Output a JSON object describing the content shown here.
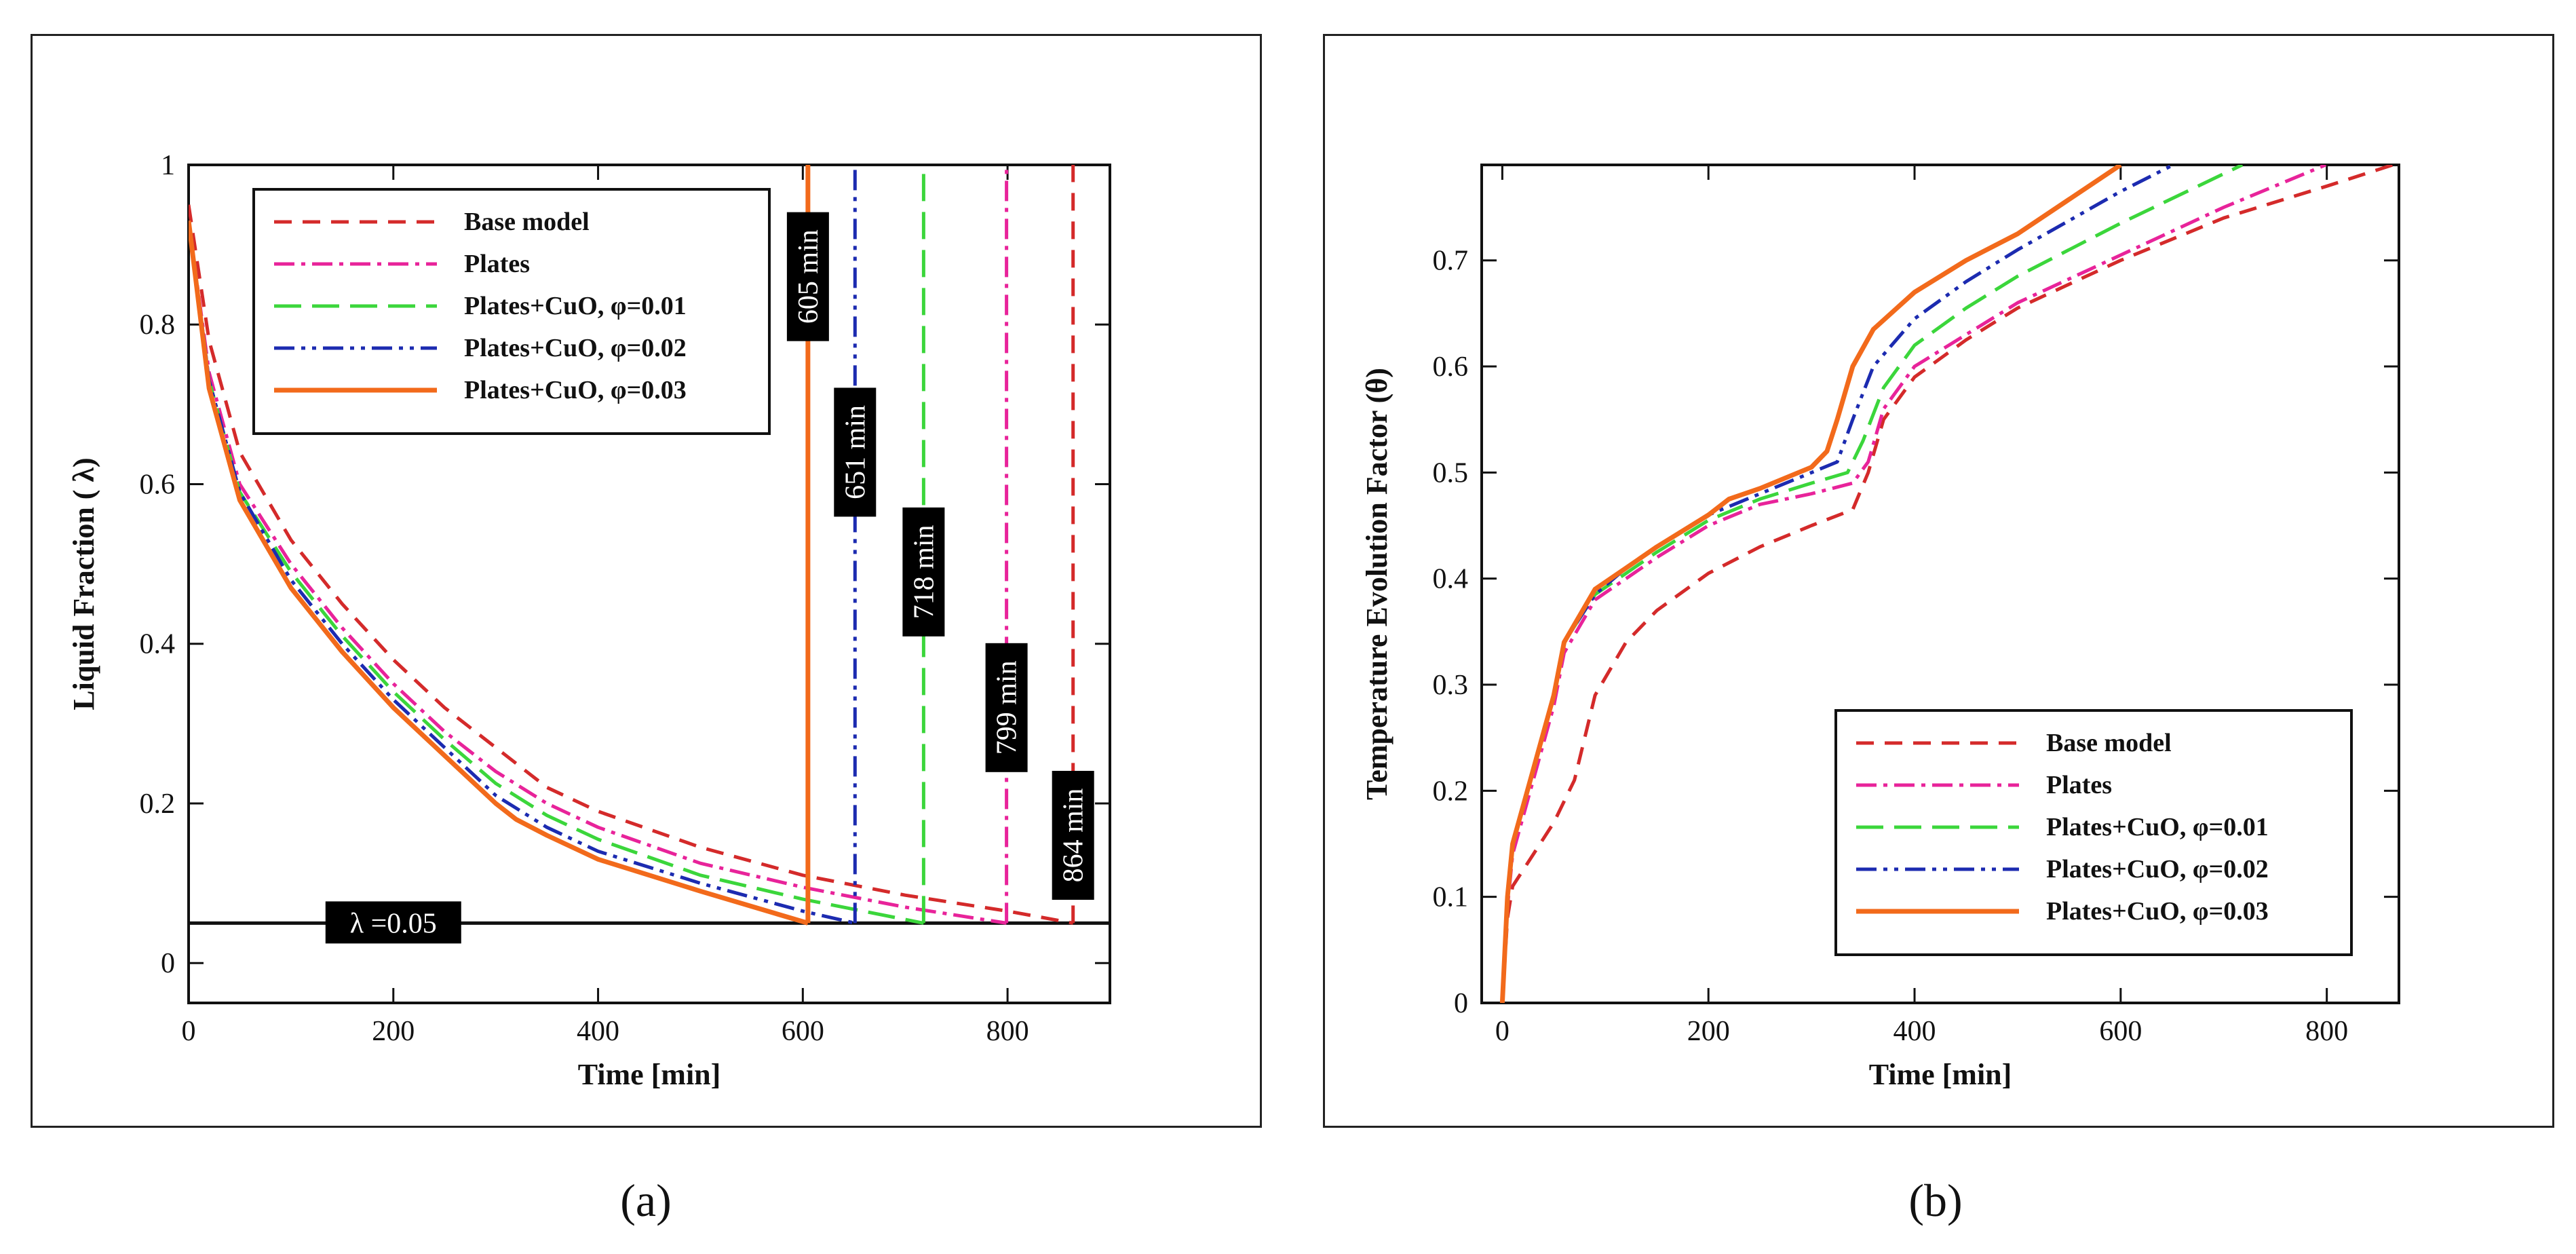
{
  "chart_data": [
    {
      "id": "a",
      "type": "line",
      "caption": "(a)",
      "xlabel": "Time [min]",
      "ylabel": "Liquid Fraction ( λ)",
      "xlim": [
        0,
        900
      ],
      "ylim": [
        -0.05,
        1.0
      ],
      "xticks": [
        0,
        200,
        400,
        600,
        800
      ],
      "yticks": [
        0,
        0.2,
        0.4,
        0.6,
        0.8,
        1
      ],
      "xtick_labels": [
        "0",
        "200",
        "400",
        "600",
        "800"
      ],
      "ytick_labels": [
        "0",
        "0.2",
        "0.4",
        "0.6",
        "0.8",
        "1"
      ],
      "legend_position": "top-left",
      "series": [
        {
          "name": "Base model",
          "color": "#d42a2a",
          "dash": "dash",
          "vertical_at": 864,
          "x": [
            0,
            20,
            50,
            100,
            150,
            200,
            250,
            300,
            350,
            400,
            500,
            600,
            700,
            800,
            864
          ],
          "y": [
            0.95,
            0.78,
            0.64,
            0.53,
            0.45,
            0.38,
            0.32,
            0.27,
            0.22,
            0.19,
            0.145,
            0.11,
            0.085,
            0.065,
            0.05
          ]
        },
        {
          "name": "Plates",
          "color": "#e8239a",
          "dash": "dashdot",
          "vertical_at": 799,
          "x": [
            0,
            20,
            50,
            100,
            150,
            200,
            250,
            300,
            350,
            400,
            500,
            600,
            700,
            799
          ],
          "y": [
            0.93,
            0.74,
            0.6,
            0.5,
            0.42,
            0.35,
            0.29,
            0.24,
            0.2,
            0.17,
            0.125,
            0.095,
            0.07,
            0.05
          ]
        },
        {
          "name": "Plates+CuO, φ=0.01",
          "color": "#3bd63b",
          "dash": "longdash",
          "vertical_at": 718,
          "x": [
            0,
            20,
            50,
            100,
            150,
            200,
            250,
            300,
            350,
            400,
            500,
            600,
            718
          ],
          "y": [
            0.93,
            0.73,
            0.59,
            0.49,
            0.41,
            0.34,
            0.28,
            0.225,
            0.185,
            0.155,
            0.11,
            0.08,
            0.05
          ]
        },
        {
          "name": "Plates+CuO, φ=0.02",
          "color": "#1c2bb0",
          "dash": "dashdotdot",
          "vertical_at": 651,
          "x": [
            0,
            20,
            50,
            100,
            150,
            200,
            250,
            300,
            350,
            400,
            500,
            600,
            651
          ],
          "y": [
            0.93,
            0.73,
            0.59,
            0.48,
            0.4,
            0.33,
            0.27,
            0.21,
            0.17,
            0.14,
            0.1,
            0.065,
            0.05
          ]
        },
        {
          "name": "Plates+CuO, φ=0.03",
          "color": "#f26a1b",
          "dash": "solid",
          "vertical_at": 605,
          "x": [
            0,
            20,
            50,
            100,
            150,
            200,
            250,
            300,
            320,
            350,
            400,
            500,
            605
          ],
          "y": [
            0.93,
            0.72,
            0.58,
            0.47,
            0.39,
            0.32,
            0.26,
            0.2,
            0.18,
            0.16,
            0.13,
            0.09,
            0.05
          ]
        }
      ],
      "threshold": {
        "value": 0.05,
        "label": "λ =0.05",
        "label_x": 200
      },
      "annotations": [
        {
          "text": "605 min",
          "x": 605,
          "y": 0.86,
          "color": "#000000"
        },
        {
          "text": "651 min",
          "x": 651,
          "y": 0.64,
          "color": "#000000"
        },
        {
          "text": "718 min",
          "x": 718,
          "y": 0.49,
          "color": "#000000"
        },
        {
          "text": "799 min",
          "x": 799,
          "y": 0.32,
          "color": "#000000"
        },
        {
          "text": "864 min",
          "x": 864,
          "y": 0.16,
          "color": "#000000"
        }
      ]
    },
    {
      "id": "b",
      "type": "line",
      "caption": "(b)",
      "xlabel": "Time [min]",
      "ylabel": "Temperature Evolution Factor (θ)",
      "xlim": [
        -20,
        870
      ],
      "ylim": [
        0,
        0.79
      ],
      "xticks": [
        0,
        200,
        400,
        600,
        800
      ],
      "yticks": [
        0,
        0.1,
        0.2,
        0.3,
        0.4,
        0.5,
        0.6,
        0.7
      ],
      "xtick_labels": [
        "0",
        "200",
        "400",
        "600",
        "800"
      ],
      "ytick_labels": [
        "0",
        "0.1",
        "0.2",
        "0.3",
        "0.4",
        "0.5",
        "0.6",
        "0.7"
      ],
      "legend_position": "bottom-right",
      "series": [
        {
          "name": "Base model",
          "color": "#d42a2a",
          "dash": "dash",
          "x": [
            0,
            5,
            10,
            30,
            50,
            70,
            90,
            120,
            150,
            200,
            250,
            300,
            340,
            355,
            370,
            400,
            450,
            500,
            600,
            700,
            800,
            864
          ],
          "y": [
            0,
            0.08,
            0.11,
            0.14,
            0.17,
            0.21,
            0.29,
            0.34,
            0.37,
            0.405,
            0.43,
            0.45,
            0.465,
            0.5,
            0.55,
            0.59,
            0.625,
            0.655,
            0.7,
            0.74,
            0.77,
            0.79
          ]
        },
        {
          "name": "Plates",
          "color": "#e8239a",
          "dash": "dashdot",
          "x": [
            0,
            5,
            10,
            30,
            50,
            60,
            90,
            120,
            150,
            200,
            250,
            300,
            340,
            355,
            370,
            400,
            450,
            500,
            600,
            700,
            799
          ],
          "y": [
            0,
            0.09,
            0.14,
            0.21,
            0.28,
            0.33,
            0.38,
            0.4,
            0.42,
            0.45,
            0.47,
            0.48,
            0.49,
            0.51,
            0.56,
            0.6,
            0.63,
            0.66,
            0.705,
            0.75,
            0.79
          ]
        },
        {
          "name": "Plates+CuO, φ=0.01",
          "color": "#3bd63b",
          "dash": "longdash",
          "x": [
            0,
            5,
            10,
            30,
            50,
            60,
            90,
            120,
            150,
            200,
            250,
            300,
            335,
            350,
            370,
            400,
            450,
            500,
            600,
            718
          ],
          "y": [
            0,
            0.1,
            0.15,
            0.22,
            0.29,
            0.34,
            0.385,
            0.405,
            0.425,
            0.455,
            0.475,
            0.49,
            0.5,
            0.53,
            0.58,
            0.62,
            0.655,
            0.685,
            0.735,
            0.79
          ]
        },
        {
          "name": "Plates+CuO, φ=0.02",
          "color": "#1c2bb0",
          "dash": "dashdotdot",
          "x": [
            0,
            5,
            10,
            30,
            50,
            60,
            90,
            120,
            150,
            200,
            250,
            300,
            325,
            340,
            360,
            400,
            450,
            500,
            600,
            651
          ],
          "y": [
            0,
            0.1,
            0.15,
            0.22,
            0.29,
            0.34,
            0.385,
            0.41,
            0.43,
            0.46,
            0.48,
            0.5,
            0.51,
            0.55,
            0.6,
            0.645,
            0.68,
            0.71,
            0.765,
            0.79
          ]
        },
        {
          "name": "Plates+CuO, φ=0.03",
          "color": "#f26a1b",
          "dash": "solid",
          "x": [
            0,
            5,
            10,
            30,
            50,
            60,
            90,
            120,
            150,
            200,
            220,
            250,
            300,
            315,
            325,
            340,
            360,
            400,
            450,
            500,
            600
          ],
          "y": [
            0,
            0.1,
            0.15,
            0.22,
            0.29,
            0.34,
            0.39,
            0.41,
            0.43,
            0.46,
            0.475,
            0.485,
            0.505,
            0.52,
            0.55,
            0.6,
            0.635,
            0.67,
            0.7,
            0.725,
            0.79
          ]
        }
      ]
    }
  ]
}
